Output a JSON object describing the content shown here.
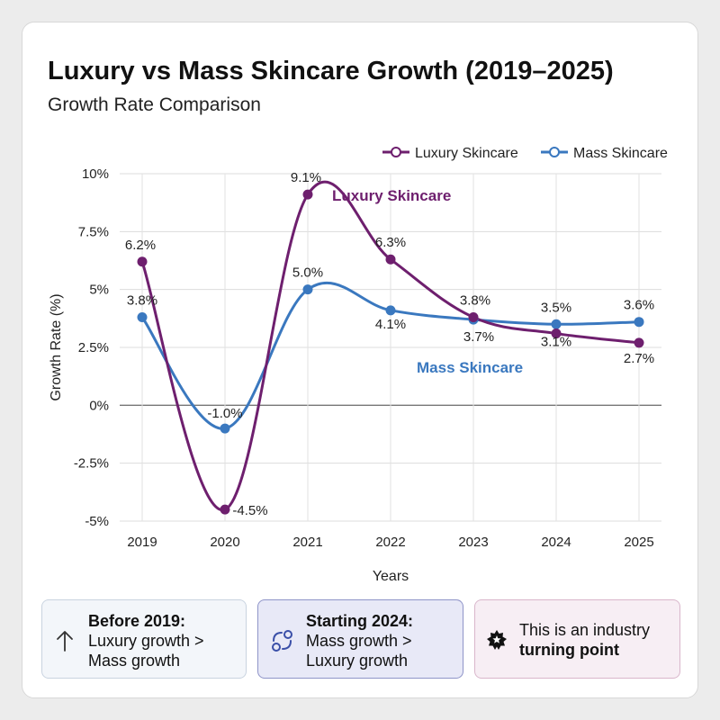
{
  "header": {
    "title": "Luxury vs Mass Skincare Growth (2019–2025)",
    "subtitle": "Growth Rate Comparison"
  },
  "chart_data": {
    "type": "line",
    "title": "Luxury vs Mass Skincare Growth (2019–2025)",
    "subtitle": "Growth Rate Comparison",
    "xlabel": "Years",
    "ylabel": "Growth Rate (%)",
    "categories": [
      "2019",
      "2020",
      "2021",
      "2022",
      "2023",
      "2024",
      "2025"
    ],
    "ylim": [
      -5,
      10
    ],
    "yticks": [
      {
        "value": 10,
        "label": "10%"
      },
      {
        "value": 7.5,
        "label": "7.5%"
      },
      {
        "value": 5,
        "label": "5%"
      },
      {
        "value": 2.5,
        "label": "2.5%"
      },
      {
        "value": 0,
        "label": "0%"
      },
      {
        "value": -2.5,
        "label": "-2.5%"
      },
      {
        "value": -5,
        "label": "-5%"
      }
    ],
    "grid": true,
    "legend": "top-right",
    "series": [
      {
        "name": "Luxury Skincare",
        "color": "#6e1f6e",
        "values": [
          6.2,
          -4.5,
          9.1,
          6.3,
          3.8,
          3.1,
          2.7
        ],
        "labels": [
          "6.2%",
          "-4.5%",
          "9.1%",
          "6.3%",
          "3.8%",
          "3.1%",
          "2.7%"
        ],
        "inline_label": "Luxury Skincare"
      },
      {
        "name": "Mass Skincare",
        "color": "#3a78bf",
        "values": [
          3.8,
          -1.0,
          5.0,
          4.1,
          3.7,
          3.5,
          3.6
        ],
        "labels": [
          "3.8%",
          "-1.0%",
          "5.0%",
          "4.1%",
          "3.7%",
          "3.5%",
          "3.6%"
        ],
        "inline_label": "Mass Skincare"
      }
    ]
  },
  "insights": [
    {
      "icon": "arrow-up-icon",
      "heading": "Before 2019:",
      "line1": "Luxury growth >",
      "line2": "Mass growth"
    },
    {
      "icon": "swap-icon",
      "heading": "Starting 2024:",
      "line1": "Mass growth >",
      "line2": "Luxury growth"
    },
    {
      "icon": "badge-star-icon",
      "line1": "This is an industry",
      "line2": "turning point"
    }
  ]
}
